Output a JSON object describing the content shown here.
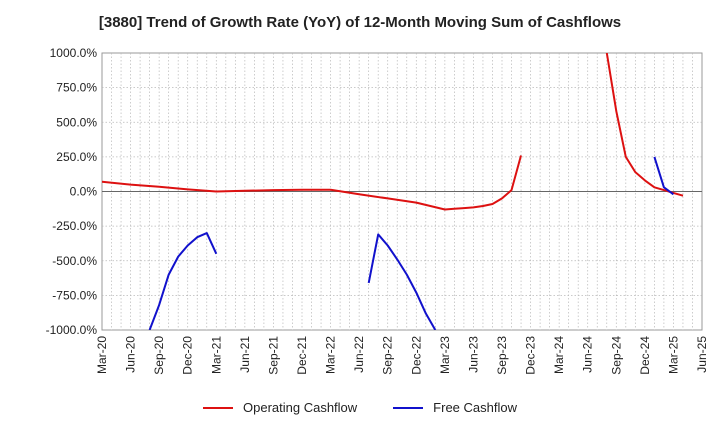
{
  "chart_data": {
    "type": "line",
    "title": "[3880]  Trend of Growth Rate (YoY) of 12-Month Moving Sum of Cashflows",
    "xlabel": "",
    "ylabel": "",
    "ylim": [
      -1000,
      1000
    ],
    "y_ticks": [
      "1000.0%",
      "750.0%",
      "500.0%",
      "250.0%",
      "0.0%",
      "-250.0%",
      "-500.0%",
      "-750.0%",
      "-1000.0%"
    ],
    "x_ticks": [
      "Mar-20",
      "Jun-20",
      "Sep-20",
      "Dec-20",
      "Mar-21",
      "Jun-21",
      "Sep-21",
      "Dec-21",
      "Mar-22",
      "Jun-22",
      "Sep-22",
      "Dec-22",
      "Mar-23",
      "Jun-23",
      "Sep-23",
      "Dec-23",
      "Mar-24",
      "Jun-24",
      "Sep-24",
      "Dec-24",
      "Mar-25",
      "Jun-25"
    ],
    "grid": true,
    "legend_position": "bottom",
    "series": [
      {
        "name": "Operating Cashflow",
        "color": "#dd1111",
        "points": [
          [
            "Mar-20",
            70
          ],
          [
            "Jun-20",
            50
          ],
          [
            "Sep-20",
            35
          ],
          [
            "Dec-20",
            15
          ],
          [
            "Mar-21",
            0
          ],
          [
            "Jun-21",
            5
          ],
          [
            "Sep-21",
            10
          ],
          [
            "Dec-21",
            12
          ],
          [
            "Mar-22",
            12
          ],
          [
            "Jun-22",
            -20
          ],
          [
            "Sep-22",
            -50
          ],
          [
            "Dec-22",
            -80
          ],
          [
            "Mar-23",
            -130
          ],
          [
            "Apr-23",
            -125
          ],
          [
            "May-23",
            -120
          ],
          [
            "Jun-23",
            -115
          ],
          [
            "Jul-23",
            -105
          ],
          [
            "Aug-23",
            -90
          ],
          [
            "Sep-23",
            -50
          ],
          [
            "Oct-23",
            10
          ],
          [
            "Nov-23",
            260
          ],
          null,
          [
            "Aug-24",
            1000
          ],
          [
            "Sep-24",
            580
          ],
          [
            "Oct-24",
            250
          ],
          [
            "Nov-24",
            140
          ],
          [
            "Dec-24",
            80
          ],
          [
            "Jan-25",
            30
          ],
          [
            "Feb-25",
            10
          ],
          [
            "Mar-25",
            -10
          ],
          [
            "Apr-25",
            -30
          ]
        ]
      },
      {
        "name": "Free Cashflow",
        "color": "#1111cc",
        "points": [
          [
            "Aug-20",
            -1000
          ],
          [
            "Sep-20",
            -820
          ],
          [
            "Oct-20",
            -600
          ],
          [
            "Nov-20",
            -470
          ],
          [
            "Dec-20",
            -390
          ],
          [
            "Jan-21",
            -330
          ],
          [
            "Feb-21",
            -300
          ],
          [
            "Mar-21",
            -450
          ],
          null,
          [
            "Jul-22",
            -660
          ],
          [
            "Aug-22",
            -310
          ],
          [
            "Sep-22",
            -390
          ],
          [
            "Oct-22",
            -490
          ],
          [
            "Nov-22",
            -600
          ],
          [
            "Dec-22",
            -730
          ],
          [
            "Jan-23",
            -880
          ],
          [
            "Feb-23",
            -1000
          ],
          null,
          [
            "Jan-25",
            250
          ],
          [
            "Feb-25",
            30
          ],
          [
            "Mar-25",
            -20
          ]
        ]
      }
    ]
  }
}
